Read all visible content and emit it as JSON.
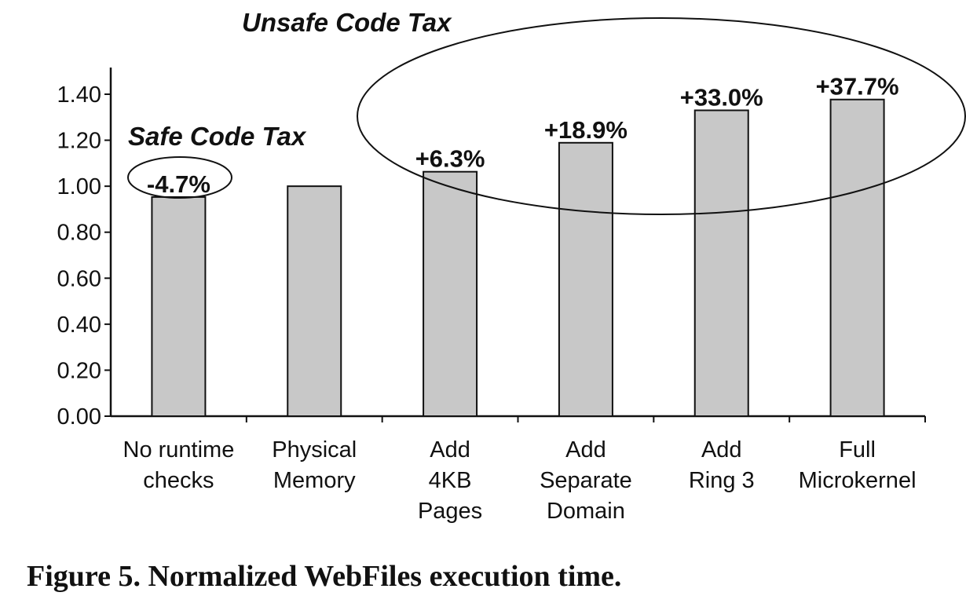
{
  "caption": "Figure 5. Normalized WebFiles execution time.",
  "chart_data": {
    "type": "bar",
    "categories": [
      [
        "No runtime",
        "checks"
      ],
      [
        "Physical",
        "Memory"
      ],
      [
        "Add",
        "4KB",
        "Pages"
      ],
      [
        "Add",
        "Separate",
        "Domain"
      ],
      [
        "Add",
        "Ring 3"
      ],
      [
        "Full",
        "Microkernel"
      ]
    ],
    "values": [
      0.953,
      1.0,
      1.063,
      1.189,
      1.33,
      1.377
    ],
    "data_labels": [
      "-4.7%",
      "",
      "+6.3%",
      "+18.9%",
      "+33.0%",
      "+37.7%"
    ],
    "yticks": [
      "0.00",
      "0.20",
      "0.40",
      "0.60",
      "0.80",
      "1.00",
      "1.20",
      "1.40"
    ],
    "ylim": [
      0,
      1.4
    ],
    "bar_color": "#c8c8c8",
    "annotations": {
      "safe": "Safe Code Tax",
      "unsafe": "Unsafe Code Tax"
    }
  }
}
